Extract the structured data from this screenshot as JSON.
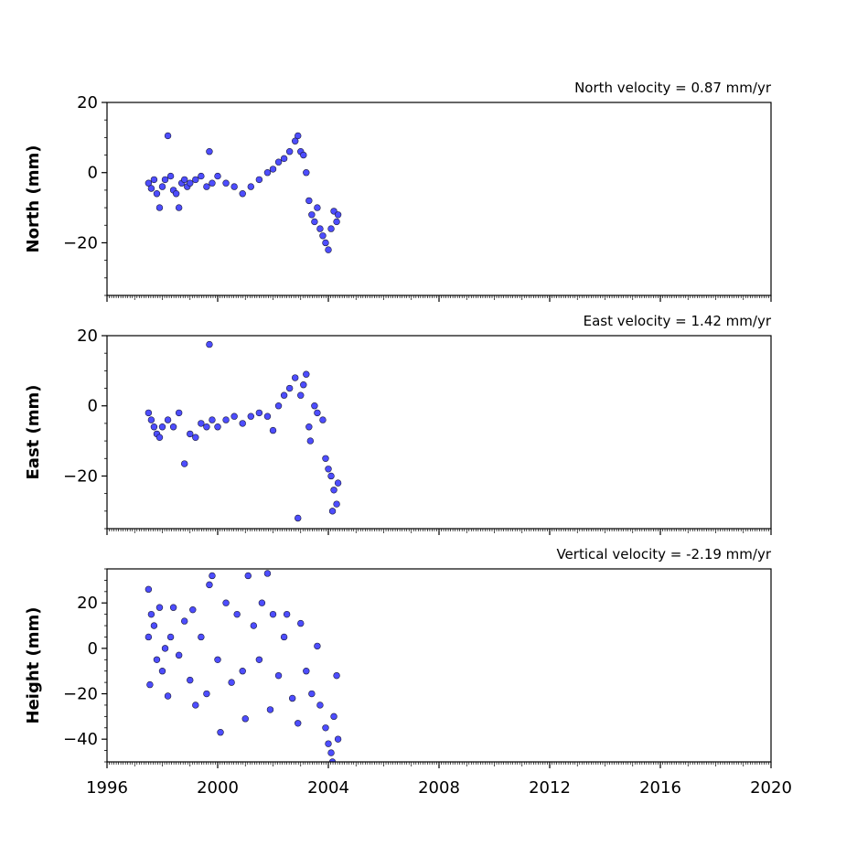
{
  "colors": {
    "marker_fill": "#4d4dff",
    "marker_edge": "#1a1a3a",
    "axis": "#000000"
  },
  "x_axis": {
    "range": [
      1996,
      2020
    ],
    "ticks": [
      "1996",
      "2000",
      "2004",
      "2008",
      "2012",
      "2016",
      "2020"
    ]
  },
  "chart_data": [
    {
      "type": "scatter",
      "title": "North velocity = 0.87 mm/yr",
      "ylabel": "North (mm)",
      "xlim": [
        1996,
        2020
      ],
      "ylim": [
        -35,
        20
      ],
      "yticks": [
        "20",
        "0",
        "−20"
      ],
      "ytick_values": [
        20,
        0,
        -20
      ],
      "series": [
        {
          "points": [
            [
              1997.5,
              -3
            ],
            [
              1997.6,
              -4.5
            ],
            [
              1997.7,
              -2
            ],
            [
              1997.8,
              -6
            ],
            [
              1997.9,
              -10
            ],
            [
              1998.0,
              -4
            ],
            [
              1998.1,
              -2
            ],
            [
              1998.2,
              10.5
            ],
            [
              1998.3,
              -1
            ],
            [
              1998.4,
              -5
            ],
            [
              1998.5,
              -6
            ],
            [
              1998.6,
              -10
            ],
            [
              1998.7,
              -3
            ],
            [
              1998.8,
              -2
            ],
            [
              1998.9,
              -4
            ],
            [
              1999.0,
              -3
            ],
            [
              1999.2,
              -2
            ],
            [
              1999.4,
              -1
            ],
            [
              1999.6,
              -4
            ],
            [
              1999.7,
              6
            ],
            [
              1999.8,
              -3
            ],
            [
              2000.0,
              -1
            ],
            [
              2000.3,
              -3
            ],
            [
              2000.6,
              -4
            ],
            [
              2000.9,
              -6
            ],
            [
              2001.2,
              -4
            ],
            [
              2001.5,
              -2
            ],
            [
              2001.8,
              0
            ],
            [
              2002.0,
              1
            ],
            [
              2002.2,
              3
            ],
            [
              2002.4,
              4
            ],
            [
              2002.6,
              6
            ],
            [
              2002.8,
              9
            ],
            [
              2002.9,
              10.5
            ],
            [
              2003.0,
              6
            ],
            [
              2003.1,
              5
            ],
            [
              2003.2,
              0
            ],
            [
              2003.3,
              -8
            ],
            [
              2003.4,
              -12
            ],
            [
              2003.5,
              -14
            ],
            [
              2003.6,
              -10
            ],
            [
              2003.7,
              -16
            ],
            [
              2003.8,
              -18
            ],
            [
              2003.9,
              -20
            ],
            [
              2004.0,
              -22
            ],
            [
              2004.1,
              -16
            ],
            [
              2004.2,
              -11
            ],
            [
              2004.3,
              -14
            ],
            [
              2004.35,
              -12
            ]
          ]
        }
      ]
    },
    {
      "type": "scatter",
      "title": "East velocity = 1.42 mm/yr",
      "ylabel": "East (mm)",
      "xlim": [
        1996,
        2020
      ],
      "ylim": [
        -35,
        20
      ],
      "yticks": [
        "20",
        "0",
        "−20"
      ],
      "ytick_values": [
        20,
        0,
        -20
      ],
      "series": [
        {
          "points": [
            [
              1997.5,
              -2
            ],
            [
              1997.6,
              -4
            ],
            [
              1997.7,
              -6
            ],
            [
              1997.8,
              -8
            ],
            [
              1997.9,
              -9
            ],
            [
              1998.0,
              -6
            ],
            [
              1998.2,
              -4
            ],
            [
              1998.4,
              -6
            ],
            [
              1998.6,
              -2
            ],
            [
              1998.8,
              -16.5
            ],
            [
              1999.0,
              -8
            ],
            [
              1999.2,
              -9
            ],
            [
              1999.4,
              -5
            ],
            [
              1999.6,
              -6
            ],
            [
              1999.7,
              17.5
            ],
            [
              1999.8,
              -4
            ],
            [
              2000.0,
              -6
            ],
            [
              2000.3,
              -4
            ],
            [
              2000.6,
              -3
            ],
            [
              2000.9,
              -5
            ],
            [
              2001.2,
              -3
            ],
            [
              2001.5,
              -2
            ],
            [
              2001.8,
              -3
            ],
            [
              2002.0,
              -7
            ],
            [
              2002.2,
              0
            ],
            [
              2002.4,
              3
            ],
            [
              2002.6,
              5
            ],
            [
              2002.8,
              8
            ],
            [
              2002.9,
              -32
            ],
            [
              2003.0,
              3
            ],
            [
              2003.1,
              6
            ],
            [
              2003.2,
              9
            ],
            [
              2003.3,
              -6
            ],
            [
              2003.35,
              -10
            ],
            [
              2003.5,
              0
            ],
            [
              2003.6,
              -2
            ],
            [
              2003.8,
              -4
            ],
            [
              2003.9,
              -15
            ],
            [
              2004.0,
              -18
            ],
            [
              2004.1,
              -20
            ],
            [
              2004.15,
              -30
            ],
            [
              2004.2,
              -24
            ],
            [
              2004.3,
              -28
            ],
            [
              2004.35,
              -22
            ]
          ]
        }
      ]
    },
    {
      "type": "scatter",
      "title": "Vertical velocity = -2.19 mm/yr",
      "ylabel": "Height (mm)",
      "xlim": [
        1996,
        2020
      ],
      "ylim": [
        -50,
        35
      ],
      "yticks": [
        "20",
        "0",
        "−20",
        "−40"
      ],
      "ytick_values": [
        20,
        0,
        -20,
        -40
      ],
      "series": [
        {
          "points": [
            [
              1997.5,
              26
            ],
            [
              1997.5,
              5
            ],
            [
              1997.55,
              -16
            ],
            [
              1997.6,
              15
            ],
            [
              1997.7,
              10
            ],
            [
              1997.8,
              -5
            ],
            [
              1997.9,
              18
            ],
            [
              1998.0,
              -10
            ],
            [
              1998.1,
              0
            ],
            [
              1998.2,
              -21
            ],
            [
              1998.3,
              5
            ],
            [
              1998.4,
              18
            ],
            [
              1998.6,
              -3
            ],
            [
              1998.8,
              12
            ],
            [
              1999.0,
              -14
            ],
            [
              1999.1,
              17
            ],
            [
              1999.2,
              -25
            ],
            [
              1999.4,
              5
            ],
            [
              1999.6,
              -20
            ],
            [
              1999.7,
              28
            ],
            [
              1999.8,
              32
            ],
            [
              2000.0,
              -5
            ],
            [
              2000.1,
              -37
            ],
            [
              2000.3,
              20
            ],
            [
              2000.5,
              -15
            ],
            [
              2000.7,
              15
            ],
            [
              2000.9,
              -10
            ],
            [
              2001.0,
              -31
            ],
            [
              2001.1,
              32
            ],
            [
              2001.3,
              10
            ],
            [
              2001.5,
              -5
            ],
            [
              2001.6,
              20
            ],
            [
              2001.8,
              33
            ],
            [
              2001.9,
              -27
            ],
            [
              2002.0,
              15
            ],
            [
              2002.2,
              -12
            ],
            [
              2002.4,
              5
            ],
            [
              2002.5,
              15
            ],
            [
              2002.7,
              -22
            ],
            [
              2002.9,
              -33
            ],
            [
              2003.0,
              11
            ],
            [
              2003.2,
              -10
            ],
            [
              2003.4,
              -20
            ],
            [
              2003.6,
              1
            ],
            [
              2003.7,
              -25
            ],
            [
              2003.9,
              -35
            ],
            [
              2004.0,
              -42
            ],
            [
              2004.1,
              -46
            ],
            [
              2004.15,
              -50
            ],
            [
              2004.2,
              -30
            ],
            [
              2004.3,
              -12
            ],
            [
              2004.35,
              -40
            ]
          ]
        }
      ]
    }
  ]
}
